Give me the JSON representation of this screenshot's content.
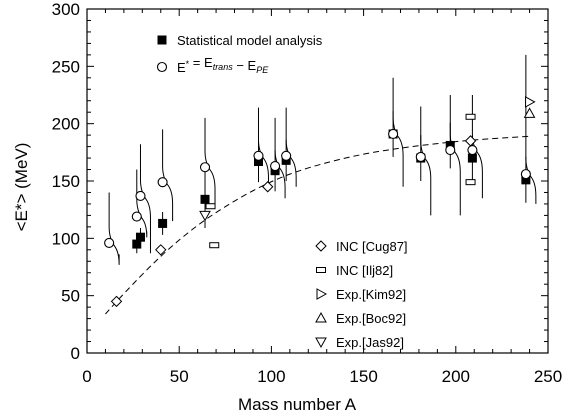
{
  "chart_data": {
    "type": "scatter",
    "xlabel": "Mass number A",
    "ylabel": "<E*>  (MeV)",
    "xlim": [
      0,
      250
    ],
    "ylim": [
      0,
      300
    ],
    "xticks": [
      0,
      50,
      100,
      150,
      200,
      250
    ],
    "yticks": [
      0,
      50,
      100,
      150,
      200,
      250,
      300
    ],
    "grid": false,
    "legends": {
      "top": {
        "placement": "top-left",
        "entries": [
          {
            "marker": "filled-square",
            "label": "Statistical model analysis"
          },
          {
            "marker": "open-circle",
            "label": "E* = E_trans − E_PE"
          }
        ]
      },
      "bottom": {
        "placement": "bottom-right",
        "entries": [
          {
            "marker": "open-diamond",
            "label": "INC [Cug87]"
          },
          {
            "marker": "open-rect",
            "label": "INC [Ilj82]"
          },
          {
            "marker": "triangle-right",
            "label": "Exp.[Kim92]"
          },
          {
            "marker": "triangle-up",
            "label": "Exp.[Boc92]"
          },
          {
            "marker": "triangle-down",
            "label": "Exp.[Jas92]"
          }
        ]
      }
    },
    "series": [
      {
        "name": "Statistical model analysis",
        "marker": "filled-square",
        "points": [
          {
            "x": 27,
            "y": 95,
            "err": 8
          },
          {
            "x": 29,
            "y": 101,
            "err": 8
          },
          {
            "x": 41,
            "y": 113,
            "err": 10
          },
          {
            "x": 64,
            "y": 134,
            "err": 25
          },
          {
            "x": 93,
            "y": 167,
            "err": 18
          },
          {
            "x": 102,
            "y": 159,
            "err": 18
          },
          {
            "x": 108,
            "y": 168,
            "err": 18
          },
          {
            "x": 166,
            "y": 191,
            "err": 20
          },
          {
            "x": 181,
            "y": 170,
            "err": 20
          },
          {
            "x": 197,
            "y": 181,
            "err": 20
          },
          {
            "x": 209,
            "y": 170,
            "err": 20
          },
          {
            "x": 238,
            "y": 151,
            "err": 20
          }
        ]
      },
      {
        "name": "E* = E_trans − E_PE",
        "marker": "open-circle",
        "points": [
          {
            "x": 12,
            "y": 96
          },
          {
            "x": 27,
            "y": 119
          },
          {
            "x": 29,
            "y": 137
          },
          {
            "x": 41,
            "y": 149
          },
          {
            "x": 64,
            "y": 162
          },
          {
            "x": 93,
            "y": 172
          },
          {
            "x": 102,
            "y": 163
          },
          {
            "x": 108,
            "y": 172
          },
          {
            "x": 166,
            "y": 191
          },
          {
            "x": 181,
            "y": 171
          },
          {
            "x": 197,
            "y": 177
          },
          {
            "x": 209,
            "y": 177
          },
          {
            "x": 238,
            "y": 156
          }
        ]
      },
      {
        "name": "INC [Cug87]",
        "marker": "open-diamond",
        "points": [
          {
            "x": 16,
            "y": 45
          },
          {
            "x": 40,
            "y": 90
          },
          {
            "x": 98,
            "y": 145
          },
          {
            "x": 208,
            "y": 185
          }
        ]
      },
      {
        "name": "INC [Ilj82]",
        "marker": "open-rect",
        "points": [
          {
            "x": 67,
            "y": 128
          },
          {
            "x": 69,
            "y": 94
          },
          {
            "x": 208,
            "y": 206
          },
          {
            "x": 208,
            "y": 149
          }
        ]
      },
      {
        "name": "Exp.[Kim92]",
        "marker": "triangle-right",
        "points": [
          {
            "x": 240,
            "y": 219
          }
        ]
      },
      {
        "name": "Exp.[Boc92]",
        "marker": "triangle-up",
        "points": [
          {
            "x": 240,
            "y": 209
          }
        ]
      },
      {
        "name": "Exp.[Jas92]",
        "marker": "triangle-down",
        "points": [
          {
            "x": 64,
            "y": 120
          }
        ]
      }
    ],
    "distributions": [
      {
        "x": 12,
        "top": 140,
        "peak": 96,
        "bottom": 86
      },
      {
        "x": 27,
        "top": 160,
        "peak": 120,
        "bottom": 106
      },
      {
        "x": 29,
        "top": 182,
        "peak": 137,
        "bottom": 87
      },
      {
        "x": 41,
        "top": 195,
        "peak": 149,
        "bottom": 115
      },
      {
        "x": 64,
        "top": 205,
        "peak": 162,
        "bottom": 130
      },
      {
        "x": 93,
        "top": 214,
        "peak": 172,
        "bottom": 146
      },
      {
        "x": 102,
        "top": 205,
        "peak": 163,
        "bottom": 135
      },
      {
        "x": 108,
        "top": 214,
        "peak": 172,
        "bottom": 145
      },
      {
        "x": 166,
        "top": 240,
        "peak": 191,
        "bottom": 145
      },
      {
        "x": 181,
        "top": 215,
        "peak": 171,
        "bottom": 120
      },
      {
        "x": 197,
        "top": 225,
        "peak": 177,
        "bottom": 120
      },
      {
        "x": 209,
        "top": 225,
        "peak": 177,
        "bottom": 135
      },
      {
        "x": 238,
        "top": 260,
        "peak": 156,
        "bottom": 130
      }
    ],
    "trend_curve": {
      "style": "dashed",
      "points": [
        [
          10,
          34
        ],
        [
          20,
          52
        ],
        [
          40,
          85
        ],
        [
          60,
          112
        ],
        [
          80,
          133
        ],
        [
          100,
          150
        ],
        [
          120,
          162
        ],
        [
          150,
          174
        ],
        [
          180,
          181
        ],
        [
          210,
          186
        ],
        [
          240,
          189
        ]
      ]
    }
  }
}
